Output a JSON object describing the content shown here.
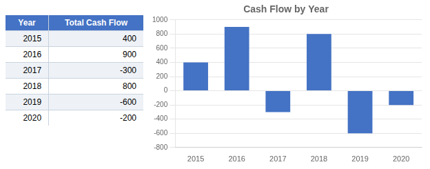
{
  "chart_data": [
    {
      "type": "table",
      "columns": [
        "Year",
        "Total Cash Flow"
      ],
      "categories": [
        "2015",
        "2016",
        "2017",
        "2018",
        "2019",
        "2020"
      ],
      "values": [
        400,
        900,
        -300,
        800,
        -600,
        -200
      ]
    },
    {
      "type": "bar",
      "title": "Cash Flow by Year",
      "categories": [
        "2015",
        "2016",
        "2017",
        "2018",
        "2019",
        "2020"
      ],
      "values": [
        400,
        900,
        -300,
        800,
        -600,
        -200
      ],
      "color": "#4472C4",
      "ylim": [
        -800,
        1000
      ],
      "yticks": [
        -800,
        -600,
        -400,
        -200,
        0,
        200,
        400,
        600,
        800,
        1000
      ],
      "grid": true
    }
  ]
}
